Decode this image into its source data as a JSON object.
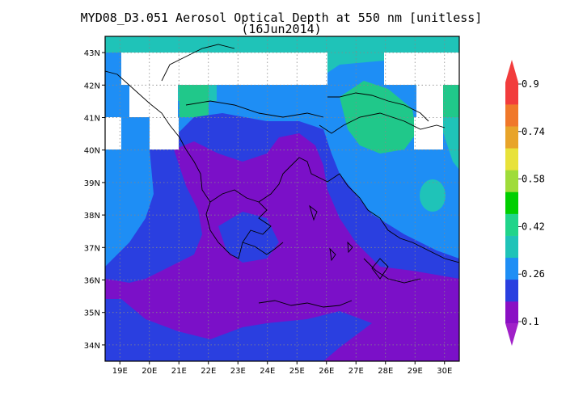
{
  "title": {
    "line1": "MYD08_D3.051 Aerosol Optical Depth at 550 nm [unitless]",
    "line2": "(16Jun2014)"
  },
  "axes": {
    "lon_range": [
      18.5,
      30.5
    ],
    "lat_range": [
      33.5,
      43.5
    ],
    "lon_ticks": [
      "19E",
      "20E",
      "21E",
      "22E",
      "23E",
      "24E",
      "25E",
      "26E",
      "27E",
      "28E",
      "29E",
      "30E"
    ],
    "lat_ticks": [
      "43N",
      "42N",
      "41N",
      "40N",
      "39N",
      "38N",
      "37N",
      "36N",
      "35N",
      "34N"
    ],
    "grid": "dotted"
  },
  "colorbar": {
    "labels": [
      "0.9",
      "0.74",
      "0.58",
      "0.42",
      "0.26",
      "0.1"
    ],
    "colors": [
      "#8a0fc4",
      "#2a3fe0",
      "#1e8ef5",
      "#1fc3b8",
      "#20d48a",
      "#00cf00",
      "#9fdc3a",
      "#e8e23a",
      "#e8a42a",
      "#f0782a",
      "#f23c3c"
    ],
    "under_color": "#a020c8",
    "over_color": "#f23c3c"
  },
  "map_colors": {
    "purple": "#7b10c8",
    "blue": "#2a3fe0",
    "lightblue": "#1e8ef5",
    "cyan": "#1fc3b8",
    "green": "#20c88a",
    "nodata": "#ffffff"
  }
}
